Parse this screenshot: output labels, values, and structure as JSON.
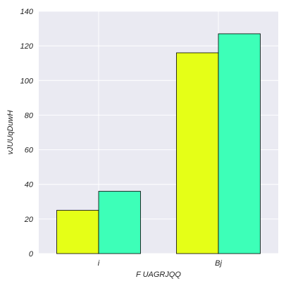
{
  "chart_data": {
    "type": "bar",
    "title": "",
    "xlabel": "F UAGRJQQ",
    "ylabel": "vJUUqDuwH",
    "categories": [
      "i",
      "Bj"
    ],
    "series": [
      {
        "values": [
          25,
          116
        ],
        "color": "#e5ff17"
      },
      {
        "values": [
          36,
          127
        ],
        "color": "#3dffb8"
      }
    ],
    "ylim": [
      0,
      140
    ],
    "yticks": [
      0,
      20,
      40,
      60,
      80,
      100,
      120,
      140
    ],
    "grid": true,
    "background_color": "#eaeaf2",
    "grid_color": "#ffffff"
  }
}
